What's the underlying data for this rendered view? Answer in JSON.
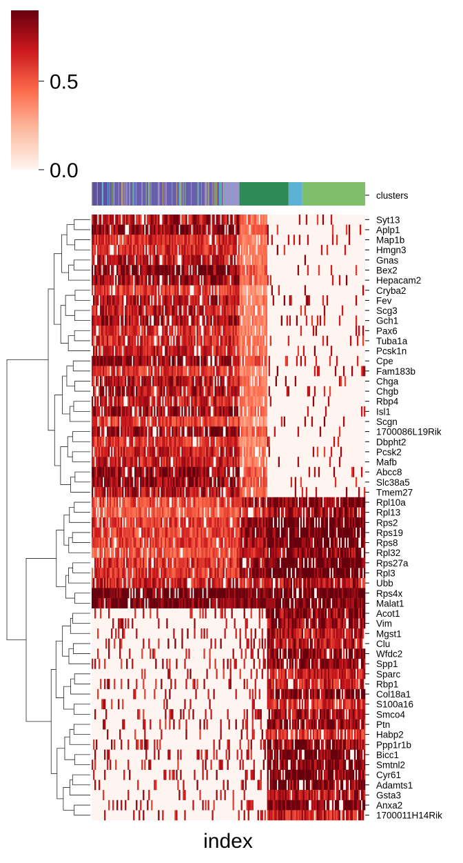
{
  "chart_data": {
    "type": "heatmap",
    "title": "",
    "xlabel": "index",
    "ylabel": "",
    "x_tick_labels": [],
    "cmap": "Reds",
    "colorbar": {
      "ticks": [
        0.0,
        0.5
      ],
      "tick_labels": [
        "0.0",
        "0.5"
      ],
      "vmin": 0.0,
      "vmax": 0.9
    },
    "annotation_row": {
      "label": "clusters",
      "segments": [
        {
          "color": "#5c52a0",
          "fraction": 0.08
        },
        {
          "color": "#6a5fae",
          "fraction": 0.4
        },
        {
          "color": "#9b94c8",
          "fraction": 0.06
        },
        {
          "color": "#2e8b57",
          "fraction": 0.18
        },
        {
          "color": "#5bb2d6",
          "fraction": 0.05
        },
        {
          "color": "#7fbf6a",
          "fraction": 0.23
        }
      ]
    },
    "genes": [
      "Syt13",
      "Aplp1",
      "Map1b",
      "Hmgn3",
      "Gnas",
      "Bex2",
      "Hepacam2",
      "Cryba2",
      "Fev",
      "Scg3",
      "Gch1",
      "Pax6",
      "Tuba1a",
      "Pcsk1n",
      "Cpe",
      "Fam183b",
      "Chga",
      "Chgb",
      "Rbp4",
      "Isl1",
      "Scgn",
      "1700086L19Rik",
      "Dbpht2",
      "Pcsk2",
      "Mafb",
      "Abcc8",
      "Slc38a5",
      "Tmem27",
      "Rpl10a",
      "Rpl13",
      "Rps2",
      "Rps19",
      "Rps8",
      "Rpl32",
      "Rps27a",
      "Rpl3",
      "Ubb",
      "Rps4x",
      "Malat1",
      "Acot1",
      "Vim",
      "Mgst1",
      "Clu",
      "Wfdc2",
      "Spp1",
      "Sparc",
      "Rbp1",
      "Col18a1",
      "S100a16",
      "Smco4",
      "Ptn",
      "Habp2",
      "Ppp1r1b",
      "Bicc1",
      "Smtnl2",
      "Cyr61",
      "Adamts1",
      "Gsta3",
      "Anxa2",
      "1700011H14Rik"
    ],
    "group_fractions": [
      0.54,
      0.1,
      0.36
    ],
    "expression_pattern_by_group": {
      "description_values": "approximate mean scaled expression per gene block in groups A (left), B (middle), C (right)",
      "endocrine_genes": {
        "genes_range": [
          0,
          27
        ],
        "A": 0.75,
        "B": 0.45,
        "C": 0.05
      },
      "ribosomal_genes": {
        "genes_range": [
          28,
          35
        ],
        "A": 0.55,
        "B": 0.75,
        "C": 0.88
      },
      "ubiquitous_genes": {
        "genes_range": [
          36,
          38
        ],
        "A": 0.85,
        "B": 0.85,
        "C": 0.9
      },
      "ductal_genes": {
        "genes_range": [
          39,
          59
        ],
        "A": 0.08,
        "B": 0.15,
        "C": 0.8
      }
    }
  }
}
